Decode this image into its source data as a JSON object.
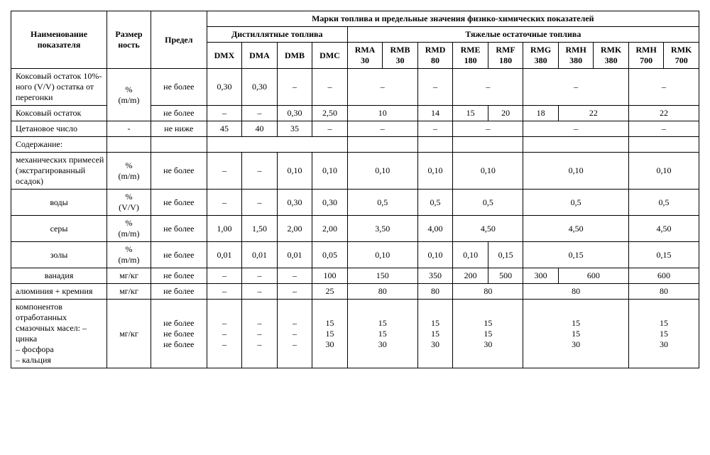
{
  "header": {
    "name_col": "Наименование показателя",
    "unit_col": "Размер\nность",
    "limit_col": "Предел",
    "top_span": "Марки топлива и предельные значения физико-химических показателей",
    "distillate": "Дистиллятные топлива",
    "residual": "Тяжелые остаточные топлива",
    "cols_d": [
      "DMX",
      "DMA",
      "DMB",
      "DMC"
    ],
    "cols_r": [
      "RMA\n30",
      "RMB\n30",
      "RMD\n80",
      "RME\n180",
      "RMF\n180",
      "RMG\n380",
      "RMH\n380",
      "RMK\n380",
      "RMH\n700",
      "RMK\n700"
    ]
  },
  "rows": {
    "r1_name": "Коксовый остаток 10%- ного (V/V) остатка от перегонки",
    "r1_unit": "%\n(m/m)",
    "r1_limit": "не более",
    "r1": [
      "0,30",
      "0,30",
      "–",
      "–",
      "–",
      "–",
      "–",
      "–",
      "–"
    ],
    "r2_name": "Коксовый остаток",
    "r2_limit": "не более",
    "r2": [
      "–",
      "–",
      "0,30",
      "2,50",
      "10",
      "14",
      "15",
      "20",
      "18",
      "22",
      "22"
    ],
    "r3_name": "Цетановое число",
    "r3_unit": "-",
    "r3_limit": "не ниже",
    "r3": [
      "45",
      "40",
      "35",
      "–",
      "–",
      "–",
      "–",
      "–",
      "–"
    ],
    "r4_name": "Содержание:",
    "r5_name": "механических примесей (экстрагированный осадок)",
    "r5_unit": "%\n(m/m)",
    "r5_limit": "не более",
    "r5": [
      "–",
      "–",
      "0,10",
      "0,10",
      "0,10",
      "0,10",
      "0,10",
      "0,10",
      "0,10"
    ],
    "r6_name": "воды",
    "r6_unit": "%\n(V/V)",
    "r6_limit": "не более",
    "r6": [
      "–",
      "–",
      "0,30",
      "0,30",
      "0,5",
      "0,5",
      "0,5",
      "0,5",
      "0,5"
    ],
    "r7_name": "серы",
    "r7_unit": "%\n(m/m)",
    "r7_limit": "не более",
    "r7": [
      "1,00",
      "1,50",
      "2,00",
      "2,00",
      "3,50",
      "4,00",
      "4,50",
      "4,50",
      "4,50"
    ],
    "r8_name": "золы",
    "r8_unit": "%\n(m/m)",
    "r8_limit": "не более",
    "r8": [
      "0,01",
      "0,01",
      "0,01",
      "0,05",
      "0,10",
      "0,10",
      "0,10",
      "0,15",
      "0,15",
      "0,15"
    ],
    "r9_name": "ванадия",
    "r9_unit": "мг/кг",
    "r9_limit": "не более",
    "r9": [
      "–",
      "–",
      "–",
      "100",
      "150",
      "350",
      "200",
      "500",
      "300",
      "600",
      "600"
    ],
    "r10_name": "алюминия + кремния",
    "r10_unit": "мг/кг",
    "r10_limit": "не более",
    "r10": [
      "–",
      "–",
      "–",
      "25",
      "80",
      "80",
      "80",
      "80",
      "80"
    ],
    "r11_name": "компонентов отработанных смазочных масел: – цинка\n– фосфора\n– кальция",
    "r11_unit": "мг/кг",
    "r11_limit": "не более\nне более\nне более",
    "r11_d": [
      "–\n–\n–",
      "–\n–\n–",
      "–\n–\n–",
      "15\n15\n30"
    ],
    "r11_r": [
      "15\n15\n30",
      "15\n15\n30",
      "15\n15\n30",
      "15\n15\n30",
      "15\n15\n30"
    ]
  },
  "style": {
    "font_family": "Times New Roman",
    "font_size_pt": 9,
    "border_color": "#000000",
    "background_color": "#ffffff",
    "text_color": "#000000"
  }
}
